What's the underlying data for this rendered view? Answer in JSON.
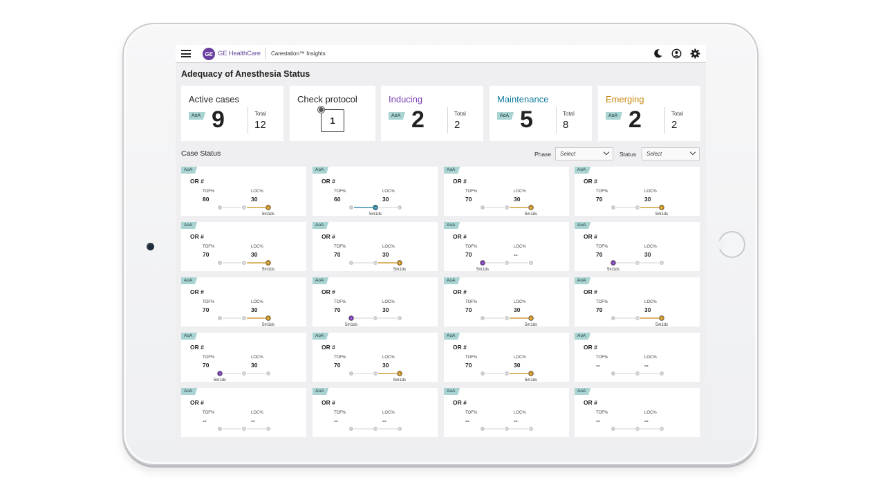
{
  "header": {
    "logo_text": "GE",
    "brand": "GE HealthCare",
    "app_name": "Carestation™ Insights",
    "icons": [
      "menu-icon",
      "moon-icon",
      "user-icon",
      "gear-icon"
    ]
  },
  "page_title": "Adequacy of Anesthesia Status",
  "summary": {
    "aoa_label": "AoA",
    "total_label": "Total",
    "cards": [
      {
        "title": "Active  cases",
        "value": "9",
        "total": "12",
        "color": "#222222"
      },
      {
        "title": "Check protocol",
        "value": "1"
      },
      {
        "title": "Inducing",
        "value": "2",
        "total": "2",
        "color": "#7a3fb5"
      },
      {
        "title": "Maintenance",
        "value": "5",
        "total": "8",
        "color": "#127a9c"
      },
      {
        "title": "Emerging",
        "value": "2",
        "total": "2",
        "color": "#c78a12"
      }
    ]
  },
  "case_status": {
    "title": "Case Status",
    "phase_label": "Phase",
    "status_label": "Status",
    "phase_select": "Select",
    "status_select": "Select"
  },
  "case_labels": {
    "aoa": "AoA",
    "or": "OR #",
    "tof": "TOF%",
    "loc": "LOC%"
  },
  "phase_colors": {
    "I": "#7a3fb5",
    "M": "#127a9c",
    "E": "#c78a12",
    "idle": "#c8c8cc"
  },
  "cases": [
    {
      "tof": "80",
      "loc": "30",
      "phase": "E",
      "time": "5m1ds"
    },
    {
      "tof": "60",
      "loc": "30",
      "phase": "M",
      "time": "5m1ds"
    },
    {
      "tof": "70",
      "loc": "30",
      "phase": "E",
      "time": "5m1ds"
    },
    {
      "tof": "70",
      "loc": "30",
      "phase": "E",
      "time": "5m1ds"
    },
    {
      "tof": "70",
      "loc": "30",
      "phase": "E",
      "time": "5m1ds"
    },
    {
      "tof": "70",
      "loc": "30",
      "phase": "E",
      "time": "5m1ds"
    },
    {
      "tof": "70",
      "loc": "--",
      "phase": "I",
      "time": "5m1ds"
    },
    {
      "tof": "70",
      "loc": "30",
      "phase": "I",
      "time": "5m1ds"
    },
    {
      "tof": "70",
      "loc": "30",
      "phase": "E",
      "time": "5m1ds"
    },
    {
      "tof": "70",
      "loc": "30",
      "phase": "I",
      "time": "5m1ds"
    },
    {
      "tof": "70",
      "loc": "30",
      "phase": "E",
      "time": "5m1ds"
    },
    {
      "tof": "70",
      "loc": "30",
      "phase": "E",
      "time": "5m1ds"
    },
    {
      "tof": "70",
      "loc": "30",
      "phase": "I",
      "time": "5m1ds"
    },
    {
      "tof": "70",
      "loc": "30",
      "phase": "E",
      "time": "5m1ds"
    },
    {
      "tof": "70",
      "loc": "30",
      "phase": "E",
      "time": "5m1ds"
    },
    {
      "tof": "--",
      "loc": "--",
      "phase": "",
      "time": ""
    },
    {
      "tof": "--",
      "loc": "--",
      "phase": "",
      "time": ""
    },
    {
      "tof": "--",
      "loc": "--",
      "phase": "",
      "time": ""
    },
    {
      "tof": "--",
      "loc": "--",
      "phase": "",
      "time": ""
    },
    {
      "tof": "--",
      "loc": "--",
      "phase": "",
      "time": ""
    }
  ]
}
